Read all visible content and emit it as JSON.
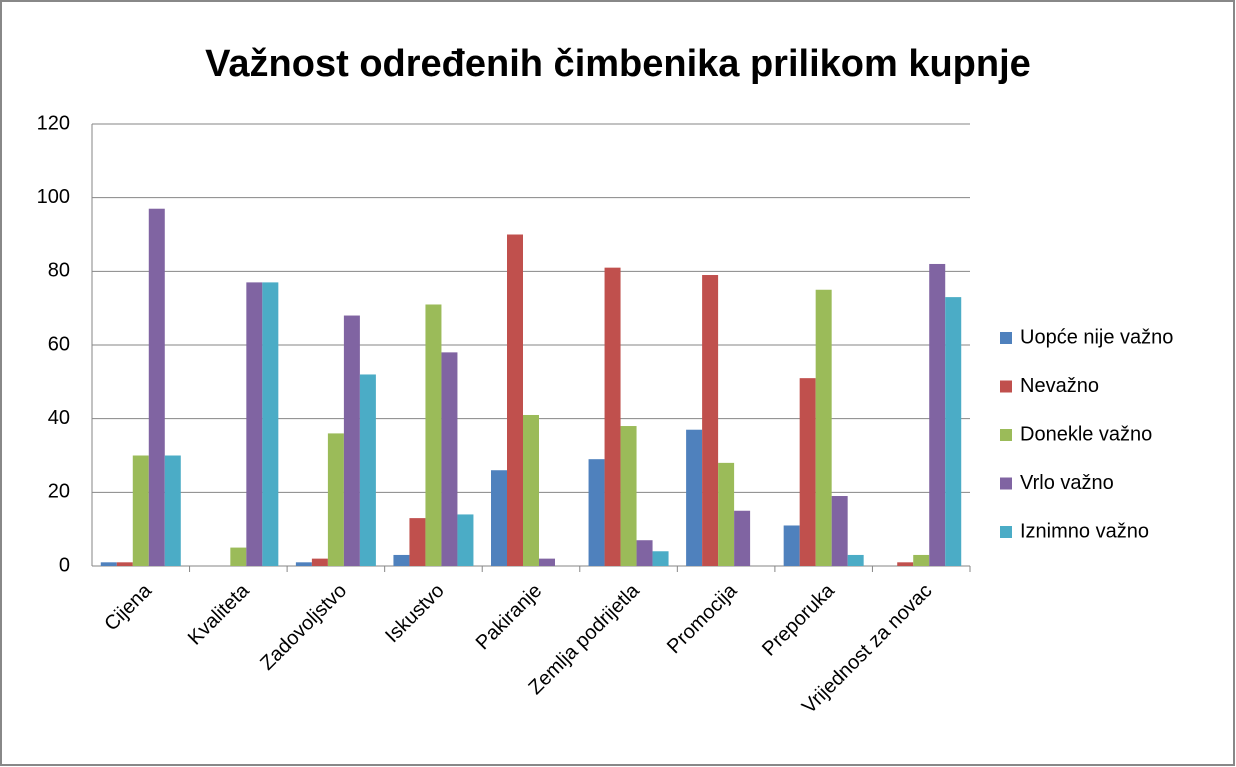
{
  "chart_data": {
    "type": "bar",
    "title": "Važnost određenih čimbenika prilikom kupnje",
    "categories": [
      "Cijena",
      "Kvaliteta",
      "Zadovoljstvo",
      "Iskustvo",
      "Pakiranje",
      "Zemlja podrijetla",
      "Promocija",
      "Preporuka",
      "Vrijednost za novac"
    ],
    "series": [
      {
        "name": "Uopće nije važno",
        "color": "#4f81bd",
        "values": [
          1,
          0,
          1,
          3,
          26,
          29,
          37,
          11,
          0
        ]
      },
      {
        "name": "Nevažno",
        "color": "#c0504d",
        "values": [
          1,
          0,
          2,
          13,
          90,
          81,
          79,
          51,
          1
        ]
      },
      {
        "name": "Donekle važno",
        "color": "#9bbb59",
        "values": [
          30,
          5,
          36,
          71,
          41,
          38,
          28,
          75,
          3
        ]
      },
      {
        "name": "Vrlo važno",
        "color": "#8064a2",
        "values": [
          97,
          77,
          68,
          58,
          2,
          7,
          15,
          19,
          82
        ]
      },
      {
        "name": "Iznimno važno",
        "color": "#4bacc6",
        "values": [
          30,
          77,
          52,
          14,
          0,
          4,
          0,
          3,
          73
        ]
      }
    ],
    "ylim": [
      0,
      120
    ],
    "yticks": [
      0,
      20,
      40,
      60,
      80,
      100,
      120
    ],
    "grid": true,
    "legend": "right"
  }
}
